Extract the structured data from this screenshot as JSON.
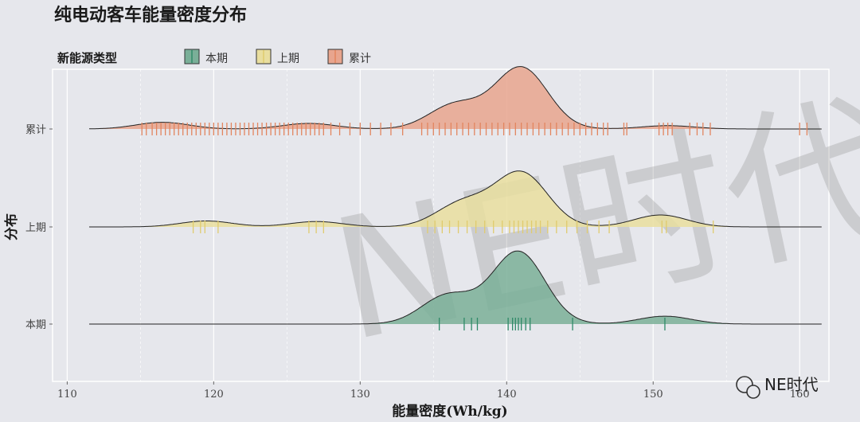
{
  "chart_data": {
    "type": "ridgeline density",
    "title": "纯电动客车能量密度分布",
    "xlabel": "能量密度(Wh/kg)",
    "ylabel": "分布",
    "xlim": [
      109,
      162
    ],
    "x_ticks": [
      110,
      120,
      130,
      140,
      150,
      160
    ],
    "x_tick_labels": [
      "110",
      "120",
      "130",
      "140",
      "150",
      "160"
    ],
    "grid": true,
    "legend": {
      "title": "新能源类型",
      "placement": "top-left",
      "entries": [
        "本期",
        "上期",
        "累计"
      ]
    },
    "series": [
      {
        "name": "累计",
        "color": "#e8a58e",
        "rug_color": "#e2855f",
        "density_peaks": [
          [
            116.5,
            0.06
          ],
          [
            126.5,
            0.05
          ],
          [
            136.5,
            0.22
          ],
          [
            141,
            0.55
          ],
          [
            151,
            0.03
          ]
        ],
        "rug_values": [
          115.1,
          115.4,
          115.8,
          116.1,
          116.4,
          116.7,
          117.0,
          117.3,
          117.6,
          117.9,
          118.2,
          118.5,
          118.8,
          119.1,
          119.4,
          119.7,
          120.0,
          120.3,
          120.6,
          120.9,
          121.2,
          121.5,
          121.8,
          122.1,
          122.4,
          122.7,
          123.0,
          123.3,
          123.6,
          123.9,
          124.2,
          124.5,
          124.8,
          125.1,
          125.4,
          125.7,
          126.0,
          126.3,
          126.6,
          126.9,
          127.2,
          127.5,
          128.0,
          128.6,
          129.3,
          130.0,
          130.7,
          131.4,
          132.1,
          132.9,
          134.2,
          134.6,
          135.0,
          135.4,
          135.8,
          136.2,
          136.6,
          137.0,
          137.4,
          137.8,
          138.2,
          138.6,
          139.0,
          139.4,
          139.8,
          140.2,
          140.6,
          141.0,
          141.4,
          141.8,
          142.2,
          142.6,
          143.0,
          143.4,
          143.8,
          144.2,
          144.6,
          145.0,
          145.4,
          145.8,
          146.2,
          146.6,
          146.9,
          148.0,
          148.2,
          150.4,
          150.7,
          151.0,
          151.3,
          152.5,
          153.0,
          153.4,
          153.9,
          160.0,
          160.5
        ]
      },
      {
        "name": "上期",
        "color": "#e9de9f",
        "rug_color": "#e0cb6e",
        "density_peaks": [
          [
            119.5,
            0.05
          ],
          [
            127,
            0.045
          ],
          [
            137,
            0.2
          ],
          [
            141,
            0.45
          ],
          [
            150.5,
            0.1
          ]
        ],
        "rug_values": [
          118.6,
          119.1,
          119.4,
          120.3,
          126.5,
          127.0,
          127.5,
          134.6,
          135.1,
          135.6,
          136.1,
          136.7,
          137.3,
          137.9,
          138.5,
          139.1,
          139.7,
          140.2,
          140.5,
          140.8,
          141.1,
          141.4,
          141.7,
          142.0,
          142.3,
          142.8,
          143.4,
          144.1,
          144.8,
          145.5,
          146.3,
          147.0,
          150.6,
          150.9,
          154.1
        ]
      },
      {
        "name": "本期",
        "color": "#7aaf98",
        "rug_color": "#2f8a68",
        "density_peaks": [
          [
            136,
            0.22
          ],
          [
            140.8,
            0.55
          ],
          [
            150.8,
            0.06
          ]
        ],
        "rug_values": [
          135.4,
          137.1,
          137.6,
          138.0,
          140.1,
          140.4,
          140.6,
          140.8,
          141.0,
          141.3,
          141.6,
          144.5,
          150.8
        ]
      }
    ]
  },
  "watermark": "NE时代",
  "brand_logo": "NE时代"
}
